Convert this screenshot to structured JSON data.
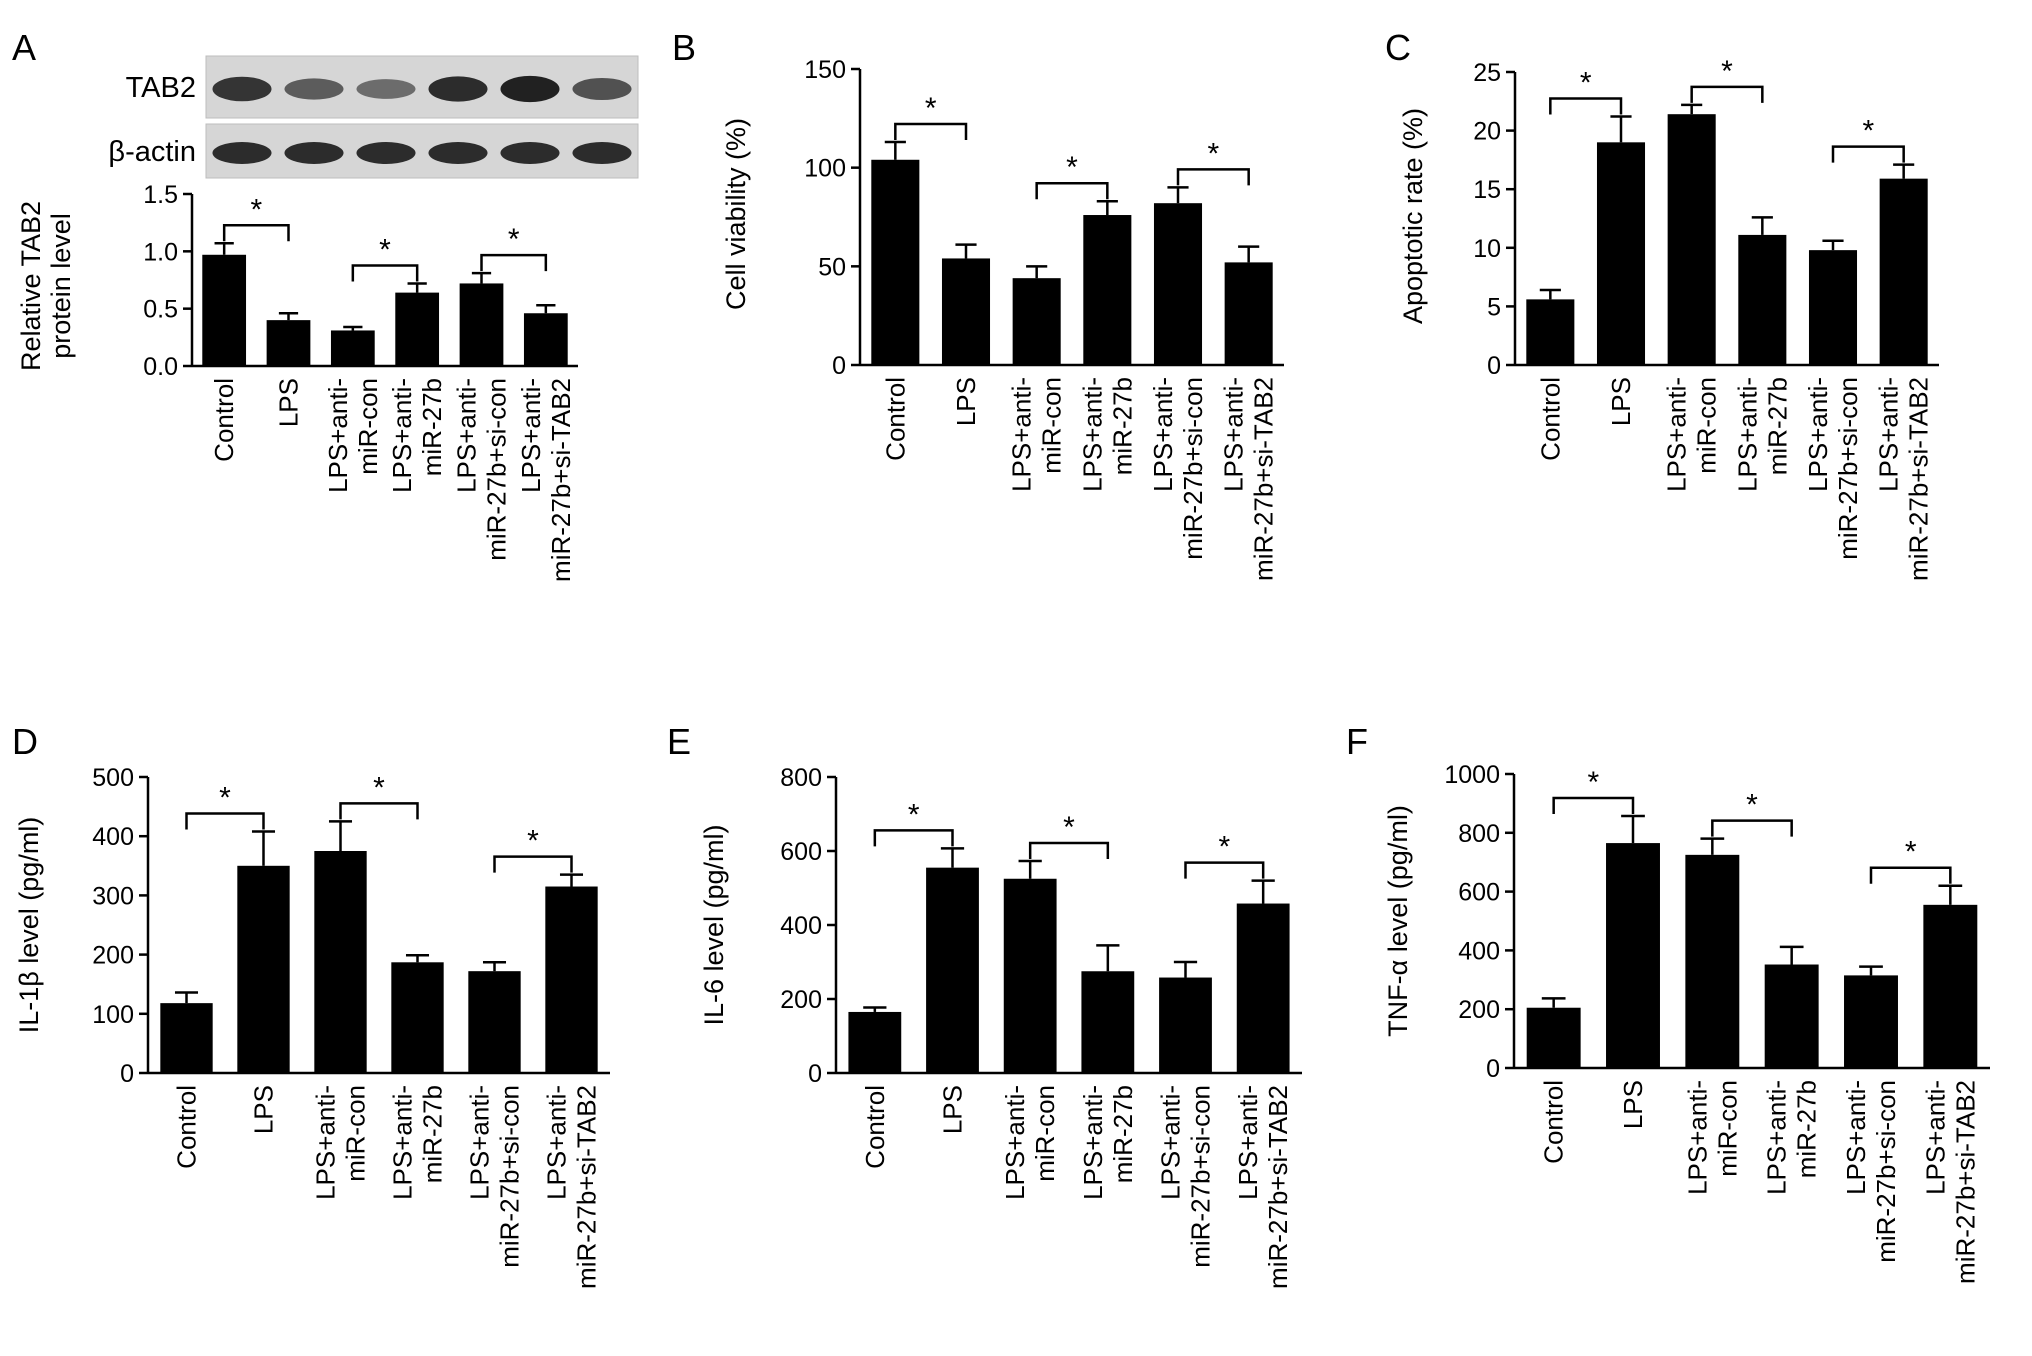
{
  "figure": {
    "groups": [
      "Control",
      "LPS",
      "LPS+anti-\nmiR-con",
      "LPS+anti-\nmiR-27b",
      "LPS+anti-\nmiR-27b+si-con",
      "LPS+anti-\nmiR-27b+si-TAB2"
    ],
    "significance_mark": "*",
    "bar_color": "#000000"
  },
  "blot": {
    "rows": [
      {
        "label": "TAB2",
        "intensities": [
          0.8,
          0.55,
          0.45,
          0.85,
          0.92,
          0.62
        ]
      },
      {
        "label": "β-actin",
        "intensities": [
          0.85,
          0.85,
          0.85,
          0.85,
          0.85,
          0.85
        ]
      }
    ]
  },
  "chart_data": [
    {
      "panel": "A",
      "type": "bar",
      "ylabel": "Relative TAB2\nprotein level",
      "ylim": [
        0,
        1.5
      ],
      "ticks": [
        "0.0",
        "0.5",
        "1.0",
        "1.5"
      ],
      "tick_values": [
        0,
        0.5,
        1.0,
        1.5
      ],
      "values": [
        0.97,
        0.4,
        0.31,
        0.64,
        0.72,
        0.46
      ],
      "errors": [
        0.1,
        0.06,
        0.03,
        0.08,
        0.09,
        0.07
      ],
      "comparisons": [
        [
          0,
          1
        ],
        [
          2,
          3
        ],
        [
          4,
          5
        ]
      ]
    },
    {
      "panel": "B",
      "type": "bar",
      "ylabel": "Cell viability (%)",
      "ylim": [
        0,
        150
      ],
      "ticks": [
        "0",
        "50",
        "100",
        "150"
      ],
      "tick_values": [
        0,
        50,
        100,
        150
      ],
      "values": [
        104,
        54,
        44,
        76,
        82,
        52
      ],
      "errors": [
        9,
        7,
        6,
        7,
        8,
        8
      ],
      "comparisons": [
        [
          0,
          1
        ],
        [
          2,
          3
        ],
        [
          4,
          5
        ]
      ]
    },
    {
      "panel": "C",
      "type": "bar",
      "ylabel": "Apoptotic rate (%)",
      "ylim": [
        0,
        25
      ],
      "ticks": [
        "0",
        "5",
        "10",
        "15",
        "20",
        "25"
      ],
      "tick_values": [
        0,
        5,
        10,
        15,
        20,
        25
      ],
      "values": [
        5.6,
        19.0,
        21.4,
        11.1,
        9.8,
        15.9
      ],
      "errors": [
        0.8,
        2.2,
        0.8,
        1.5,
        0.8,
        1.2
      ],
      "comparisons": [
        [
          0,
          1
        ],
        [
          2,
          3
        ],
        [
          4,
          5
        ]
      ]
    },
    {
      "panel": "D",
      "type": "bar",
      "ylabel": "IL-1β level (pg/ml)",
      "ylim": [
        0,
        500
      ],
      "ticks": [
        "0",
        "100",
        "200",
        "300",
        "400",
        "500"
      ],
      "tick_values": [
        0,
        100,
        200,
        300,
        400,
        500
      ],
      "values": [
        118,
        350,
        375,
        187,
        172,
        315
      ],
      "errors": [
        18,
        58,
        50,
        12,
        15,
        20
      ],
      "comparisons": [
        [
          0,
          1
        ],
        [
          2,
          3
        ],
        [
          4,
          5
        ]
      ]
    },
    {
      "panel": "E",
      "type": "bar",
      "ylabel": "IL-6 level (pg/ml)",
      "ylim": [
        0,
        800
      ],
      "ticks": [
        "0",
        "200",
        "400",
        "600",
        "800"
      ],
      "tick_values": [
        0,
        200,
        400,
        600,
        800
      ],
      "values": [
        165,
        555,
        525,
        275,
        258,
        458
      ],
      "errors": [
        12,
        52,
        48,
        70,
        42,
        62
      ],
      "comparisons": [
        [
          0,
          1
        ],
        [
          2,
          3
        ],
        [
          4,
          5
        ]
      ]
    },
    {
      "panel": "F",
      "type": "bar",
      "ylabel": "TNF-α level (pg/ml)",
      "ylim": [
        0,
        1000
      ],
      "ticks": [
        "0",
        "200",
        "400",
        "600",
        "800",
        "1000"
      ],
      "tick_values": [
        0,
        200,
        400,
        600,
        800,
        1000
      ],
      "values": [
        205,
        765,
        725,
        352,
        315,
        555
      ],
      "errors": [
        32,
        92,
        55,
        60,
        30,
        65
      ],
      "comparisons": [
        [
          0,
          1
        ],
        [
          2,
          3
        ],
        [
          4,
          5
        ]
      ]
    }
  ]
}
